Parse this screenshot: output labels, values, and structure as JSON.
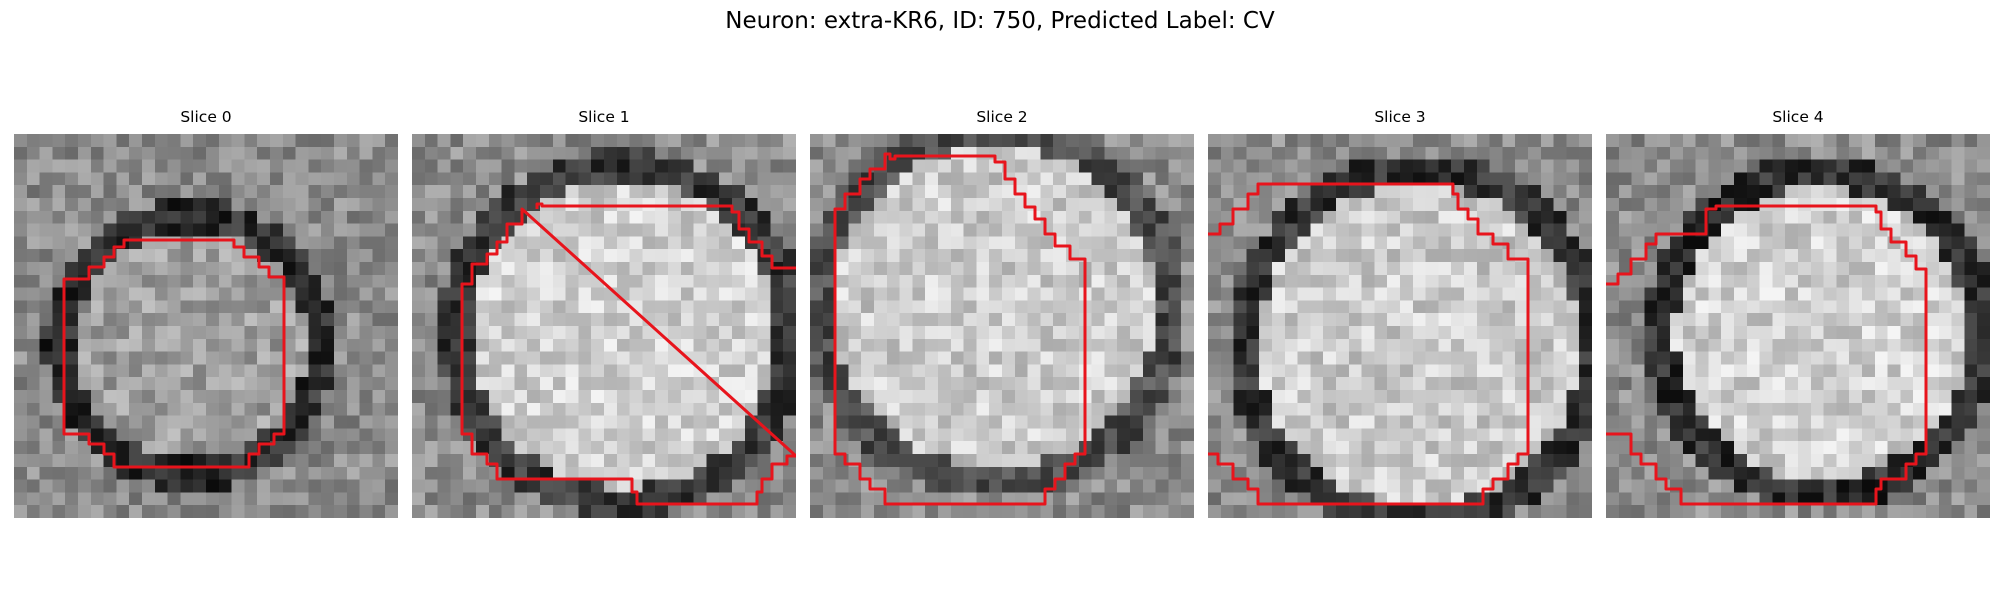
{
  "figure": {
    "title": "Neuron: extra-KR6, ID: 750, Predicted Label: CV",
    "colormap": "gray",
    "contour_color": "#e8141c",
    "panels": [
      {
        "title": "Slice 0"
      },
      {
        "title": "Slice 1"
      },
      {
        "title": "Slice 2"
      },
      {
        "title": "Slice 3"
      },
      {
        "title": "Slice 4"
      }
    ]
  }
}
